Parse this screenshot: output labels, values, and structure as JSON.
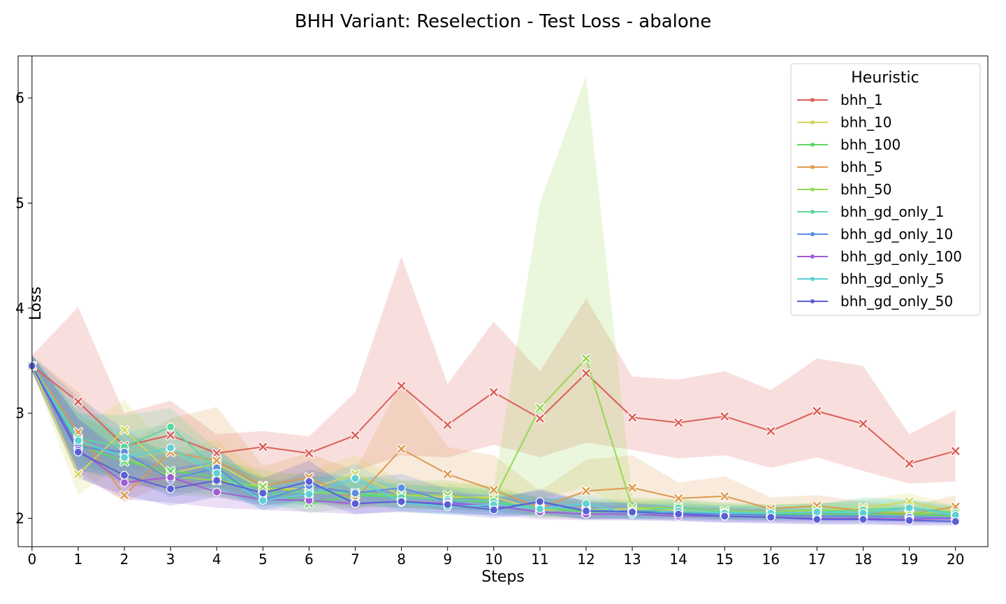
{
  "chart_data": {
    "type": "line",
    "title": "BHH Variant: Reselection - Test Loss - abalone",
    "xlabel": "Steps",
    "ylabel": "Loss",
    "xlim": [
      -0.3,
      20.7
    ],
    "ylim": [
      1.73,
      6.4
    ],
    "x": [
      0,
      1,
      2,
      3,
      4,
      5,
      6,
      7,
      8,
      9,
      10,
      11,
      12,
      13,
      14,
      15,
      16,
      17,
      18,
      19,
      20
    ],
    "xticks": [
      "0",
      "1",
      "2",
      "3",
      "4",
      "5",
      "6",
      "7",
      "8",
      "9",
      "10",
      "11",
      "12",
      "13",
      "14",
      "15",
      "16",
      "17",
      "18",
      "19",
      "20"
    ],
    "yticks": [
      2,
      3,
      4,
      5,
      6
    ],
    "ytick_labels": [
      "2",
      "3",
      "4",
      "5",
      "6"
    ],
    "grid": false,
    "legend": {
      "title": "Heuristic",
      "placement": "top-right"
    },
    "series": [
      {
        "name": "bhh_1",
        "color": "#db5f57",
        "marker": "x",
        "values": [
          3.45,
          3.11,
          2.69,
          2.79,
          2.62,
          2.68,
          2.62,
          2.79,
          3.26,
          2.89,
          3.2,
          2.95,
          3.38,
          2.96,
          2.91,
          2.97,
          2.83,
          3.02,
          2.9,
          2.52,
          2.64
        ],
        "lower": [
          3.4,
          2.6,
          2.3,
          2.3,
          2.3,
          2.35,
          2.32,
          2.45,
          2.6,
          2.58,
          2.7,
          2.58,
          2.72,
          2.65,
          2.57,
          2.6,
          2.48,
          2.58,
          2.45,
          2.33,
          2.35
        ],
        "upper": [
          3.55,
          4.01,
          3.0,
          3.12,
          2.8,
          2.83,
          2.78,
          3.2,
          4.49,
          3.28,
          3.87,
          3.4,
          4.09,
          3.35,
          3.32,
          3.4,
          3.22,
          3.52,
          3.45,
          2.8,
          3.03
        ]
      },
      {
        "name": "bhh_10",
        "color": "#d3d65b",
        "marker": "x",
        "values": [
          3.45,
          2.42,
          2.84,
          2.43,
          2.52,
          2.28,
          2.28,
          2.42,
          2.22,
          2.2,
          2.2,
          2.08,
          2.08,
          2.09,
          2.08,
          2.05,
          2.06,
          2.07,
          2.1,
          2.16,
          2.06
        ],
        "lower": [
          3.4,
          2.22,
          2.55,
          2.25,
          2.3,
          2.18,
          2.15,
          2.22,
          2.1,
          2.08,
          2.1,
          2.0,
          2.0,
          2.02,
          2.01,
          1.99,
          2.0,
          2.01,
          2.03,
          2.08,
          2.0
        ],
        "upper": [
          3.55,
          2.85,
          3.13,
          2.65,
          2.75,
          2.4,
          2.45,
          2.6,
          2.36,
          2.33,
          2.32,
          2.18,
          2.18,
          2.18,
          2.16,
          2.12,
          2.13,
          2.14,
          2.18,
          2.24,
          2.12
        ]
      },
      {
        "name": "bhh_100",
        "color": "#5ed665",
        "marker": "x",
        "values": [
          3.45,
          2.7,
          2.54,
          2.45,
          2.4,
          2.28,
          2.14,
          2.22,
          2.2,
          2.18,
          2.15,
          2.1,
          2.06,
          2.07,
          2.06,
          2.05,
          2.04,
          2.04,
          2.04,
          2.04,
          2.02
        ],
        "lower": [
          3.4,
          2.45,
          2.35,
          2.25,
          2.22,
          2.15,
          2.05,
          2.1,
          2.1,
          2.08,
          2.06,
          2.02,
          1.99,
          2.0,
          1.99,
          1.99,
          1.98,
          1.98,
          1.98,
          1.98,
          1.97
        ],
        "upper": [
          3.55,
          3.0,
          2.75,
          2.65,
          2.58,
          2.4,
          2.28,
          2.36,
          2.32,
          2.3,
          2.26,
          2.2,
          2.14,
          2.15,
          2.14,
          2.12,
          2.11,
          2.11,
          2.11,
          2.1,
          2.08
        ]
      },
      {
        "name": "bhh_5",
        "color": "#dd9a4f",
        "marker": "x",
        "values": [
          3.45,
          2.82,
          2.22,
          2.63,
          2.55,
          2.31,
          2.39,
          2.18,
          2.66,
          2.42,
          2.27,
          2.1,
          2.26,
          2.29,
          2.19,
          2.21,
          2.09,
          2.12,
          2.07,
          2.04,
          2.11
        ],
        "lower": [
          3.4,
          2.45,
          2.15,
          2.35,
          2.3,
          2.16,
          2.2,
          2.08,
          2.2,
          2.2,
          2.12,
          2.02,
          2.08,
          2.1,
          2.06,
          2.06,
          2.0,
          2.03,
          2.0,
          1.98,
          2.02
        ],
        "upper": [
          3.55,
          3.2,
          2.7,
          2.95,
          3.06,
          2.5,
          2.62,
          2.45,
          3.3,
          2.68,
          2.6,
          2.26,
          2.56,
          2.6,
          2.34,
          2.4,
          2.2,
          2.22,
          2.16,
          2.12,
          2.22
        ]
      },
      {
        "name": "bhh_50",
        "color": "#94d94f",
        "marker": "x",
        "values": [
          3.45,
          2.74,
          2.58,
          2.4,
          2.36,
          2.3,
          2.24,
          2.24,
          2.22,
          2.22,
          2.18,
          3.05,
          3.52,
          2.1,
          2.1,
          2.07,
          2.06,
          2.08,
          2.07,
          2.05,
          2.05
        ],
        "lower": [
          3.4,
          2.5,
          2.38,
          2.22,
          2.2,
          2.16,
          2.12,
          2.12,
          2.1,
          2.1,
          2.08,
          2.18,
          2.3,
          2.02,
          2.02,
          2.0,
          1.99,
          2.01,
          2.0,
          1.99,
          1.99
        ],
        "upper": [
          3.55,
          2.95,
          2.82,
          2.62,
          2.55,
          2.46,
          2.4,
          2.4,
          2.36,
          2.36,
          2.3,
          5.0,
          6.21,
          2.2,
          2.18,
          2.15,
          2.13,
          2.15,
          2.14,
          2.12,
          2.12
        ]
      },
      {
        "name": "bhh_gd_only_1",
        "color": "#5ed6a0",
        "marker": "o",
        "values": [
          3.45,
          2.76,
          2.68,
          2.87,
          2.46,
          2.22,
          2.26,
          2.24,
          2.2,
          2.18,
          2.16,
          2.1,
          2.08,
          2.07,
          2.1,
          2.06,
          2.05,
          2.06,
          2.08,
          2.1,
          2.05
        ],
        "lower": [
          3.4,
          2.5,
          2.4,
          2.65,
          2.28,
          2.12,
          2.14,
          2.12,
          2.1,
          2.08,
          2.06,
          2.02,
          2.0,
          2.0,
          2.02,
          1.99,
          1.99,
          1.99,
          2.0,
          2.02,
          1.99
        ],
        "upper": [
          3.55,
          3.0,
          2.98,
          3.05,
          2.66,
          2.34,
          2.4,
          2.38,
          2.32,
          2.3,
          2.28,
          2.2,
          2.18,
          2.16,
          2.18,
          2.14,
          2.13,
          2.14,
          2.17,
          2.18,
          2.12
        ]
      },
      {
        "name": "bhh_gd_only_10",
        "color": "#5a8ee0",
        "marker": "o",
        "values": [
          3.45,
          2.68,
          2.63,
          2.37,
          2.48,
          2.17,
          2.31,
          2.24,
          2.29,
          2.16,
          2.1,
          2.15,
          2.07,
          2.07,
          2.05,
          2.04,
          2.03,
          2.02,
          2.02,
          2.01,
          2.0
        ],
        "lower": [
          3.4,
          2.45,
          2.4,
          2.2,
          2.3,
          2.08,
          2.18,
          2.12,
          2.18,
          2.06,
          2.02,
          2.05,
          1.99,
          2.0,
          1.99,
          1.98,
          1.97,
          1.97,
          1.97,
          1.96,
          1.95
        ],
        "upper": [
          3.55,
          3.15,
          2.85,
          2.58,
          2.68,
          2.28,
          2.46,
          2.38,
          2.42,
          2.28,
          2.2,
          2.26,
          2.16,
          2.15,
          2.12,
          2.11,
          2.1,
          2.09,
          2.09,
          2.08,
          2.07
        ]
      },
      {
        "name": "bhh_gd_only_100",
        "color": "#a25cd6",
        "marker": "o",
        "values": [
          3.45,
          2.65,
          2.34,
          2.39,
          2.25,
          2.18,
          2.17,
          2.14,
          2.16,
          2.14,
          2.12,
          2.06,
          2.04,
          2.04,
          2.02,
          2.02,
          2.01,
          2.0,
          2.0,
          1.99,
          2.0
        ],
        "lower": [
          3.4,
          2.4,
          2.18,
          2.15,
          2.1,
          2.08,
          2.06,
          2.04,
          2.07,
          2.05,
          2.03,
          1.99,
          1.98,
          1.98,
          1.97,
          1.96,
          1.96,
          1.95,
          1.95,
          1.94,
          1.95
        ],
        "upper": [
          3.55,
          2.95,
          2.55,
          2.62,
          2.42,
          2.3,
          2.3,
          2.26,
          2.27,
          2.24,
          2.22,
          2.14,
          2.12,
          2.11,
          2.08,
          2.08,
          2.07,
          2.06,
          2.06,
          2.05,
          2.06
        ]
      },
      {
        "name": "bhh_gd_only_5",
        "color": "#5dd1d6",
        "marker": "o",
        "values": [
          3.45,
          2.74,
          2.58,
          2.67,
          2.43,
          2.17,
          2.23,
          2.38,
          2.15,
          2.11,
          2.13,
          2.09,
          2.14,
          2.04,
          2.07,
          2.05,
          2.05,
          2.06,
          2.05,
          2.1,
          2.03
        ],
        "lower": [
          3.4,
          2.48,
          2.35,
          2.45,
          2.26,
          2.08,
          2.12,
          2.2,
          2.06,
          2.03,
          2.04,
          2.01,
          2.04,
          1.98,
          2.0,
          1.99,
          1.99,
          2.0,
          1.99,
          2.02,
          1.98
        ],
        "upper": [
          3.55,
          3.02,
          2.82,
          2.9,
          2.62,
          2.28,
          2.36,
          2.52,
          2.26,
          2.22,
          2.24,
          2.18,
          2.24,
          2.12,
          2.15,
          2.12,
          2.12,
          2.13,
          2.2,
          2.18,
          2.1
        ]
      },
      {
        "name": "bhh_gd_only_50",
        "color": "#5a5fd6",
        "marker": "o",
        "values": [
          3.45,
          2.63,
          2.41,
          2.28,
          2.36,
          2.24,
          2.35,
          2.14,
          2.16,
          2.13,
          2.08,
          2.16,
          2.07,
          2.06,
          2.04,
          2.02,
          2.01,
          1.99,
          1.99,
          1.98,
          1.97
        ],
        "lower": [
          3.4,
          2.38,
          2.22,
          2.12,
          2.2,
          2.12,
          2.18,
          2.04,
          2.06,
          2.04,
          2.0,
          2.04,
          1.99,
          1.99,
          1.98,
          1.96,
          1.95,
          1.94,
          1.94,
          1.93,
          1.93
        ],
        "upper": [
          3.55,
          2.95,
          2.62,
          2.48,
          2.54,
          2.38,
          2.55,
          2.25,
          2.27,
          2.24,
          2.18,
          2.28,
          2.16,
          2.14,
          2.11,
          2.09,
          2.08,
          2.06,
          2.06,
          2.05,
          2.04
        ]
      }
    ]
  }
}
